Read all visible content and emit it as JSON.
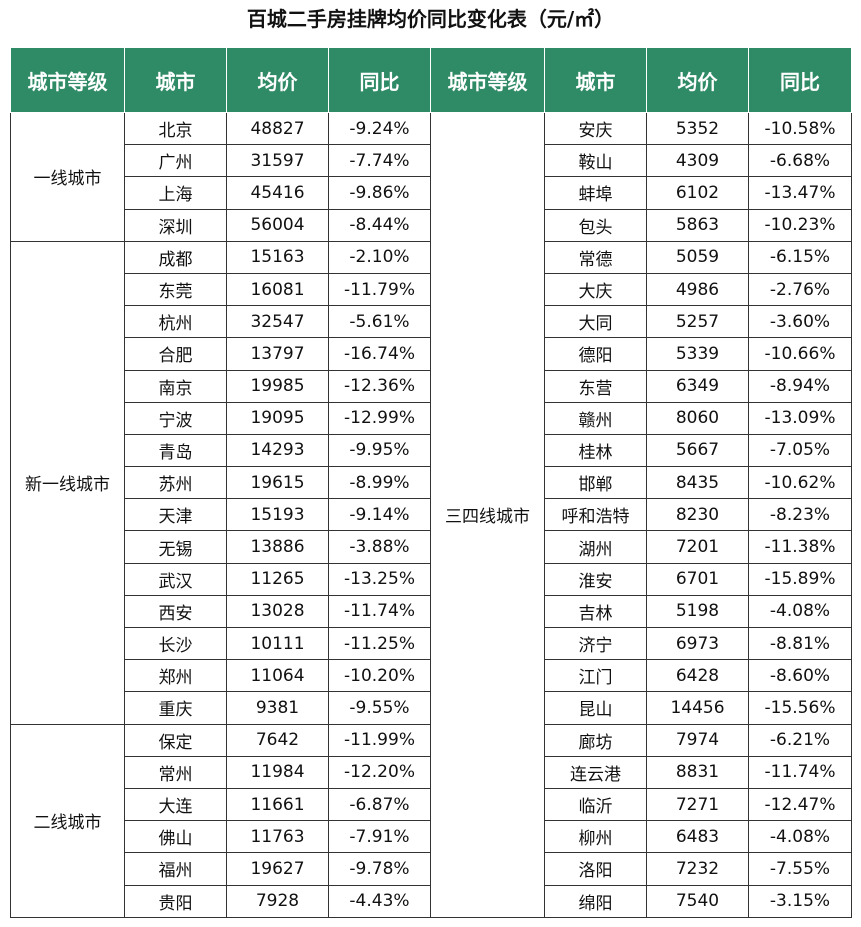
{
  "title": "百城二手房挂牌均价同比变化表（元/㎡）",
  "table": {
    "headers": [
      "城市等级",
      "城市",
      "均价",
      "同比",
      "城市等级",
      "城市",
      "均价",
      "同比"
    ],
    "left": [
      {
        "tier": "一线城市",
        "rows": [
          [
            "北京",
            48827,
            "-9.24%"
          ],
          [
            "广州",
            31597,
            "-7.74%"
          ],
          [
            "上海",
            45416,
            "-9.86%"
          ],
          [
            "深圳",
            56004,
            "-8.44%"
          ]
        ]
      },
      {
        "tier": "新一线城市",
        "rows": [
          [
            "成都",
            15163,
            "-2.10%"
          ],
          [
            "东莞",
            16081,
            "-11.79%"
          ],
          [
            "杭州",
            32547,
            "-5.61%"
          ],
          [
            "合肥",
            13797,
            "-16.74%"
          ],
          [
            "南京",
            19985,
            "-12.36%"
          ],
          [
            "宁波",
            19095,
            "-12.99%"
          ],
          [
            "青岛",
            14293,
            "-9.95%"
          ],
          [
            "苏州",
            19615,
            "-8.99%"
          ],
          [
            "天津",
            15193,
            "-9.14%"
          ],
          [
            "无锡",
            13886,
            "-3.88%"
          ],
          [
            "武汉",
            11265,
            "-13.25%"
          ],
          [
            "西安",
            13028,
            "-11.74%"
          ],
          [
            "长沙",
            10111,
            "-11.25%"
          ],
          [
            "郑州",
            11064,
            "-10.20%"
          ],
          [
            "重庆",
            9381,
            "-9.55%"
          ]
        ]
      },
      {
        "tier": "二线城市",
        "rows": [
          [
            "保定",
            7642,
            "-11.99%"
          ],
          [
            "常州",
            11984,
            "-12.20%"
          ],
          [
            "大连",
            11661,
            "-6.87%"
          ],
          [
            "佛山",
            11763,
            "-7.91%"
          ],
          [
            "福州",
            19627,
            "-9.78%"
          ],
          [
            "贵阳",
            7928,
            "-4.43%"
          ]
        ]
      }
    ],
    "right": [
      {
        "tier": "三四线城市",
        "rows": [
          [
            "安庆",
            5352,
            "-10.58%"
          ],
          [
            "鞍山",
            4309,
            "-6.68%"
          ],
          [
            "蚌埠",
            6102,
            "-13.47%"
          ],
          [
            "包头",
            5863,
            "-10.23%"
          ],
          [
            "常德",
            5059,
            "-6.15%"
          ],
          [
            "大庆",
            4986,
            "-2.76%"
          ],
          [
            "大同",
            5257,
            "-3.60%"
          ],
          [
            "德阳",
            5339,
            "-10.66%"
          ],
          [
            "东营",
            6349,
            "-8.94%"
          ],
          [
            "赣州",
            8060,
            "-13.09%"
          ],
          [
            "桂林",
            5667,
            "-7.05%"
          ],
          [
            "邯郸",
            8435,
            "-10.62%"
          ],
          [
            "呼和浩特",
            8230,
            "-8.23%"
          ],
          [
            "湖州",
            7201,
            "-11.38%"
          ],
          [
            "淮安",
            6701,
            "-15.89%"
          ],
          [
            "吉林",
            5198,
            "-4.08%"
          ],
          [
            "济宁",
            6973,
            "-8.81%"
          ],
          [
            "江门",
            6428,
            "-8.60%"
          ],
          [
            "昆山",
            14456,
            "-15.56%"
          ],
          [
            "廊坊",
            7974,
            "-6.21%"
          ],
          [
            "连云港",
            8831,
            "-11.74%"
          ],
          [
            "临沂",
            7271,
            "-12.47%"
          ],
          [
            "柳州",
            6483,
            "-4.08%"
          ],
          [
            "洛阳",
            7232,
            "-7.55%"
          ],
          [
            "绵阳",
            7540,
            "-3.15%"
          ]
        ]
      }
    ]
  }
}
